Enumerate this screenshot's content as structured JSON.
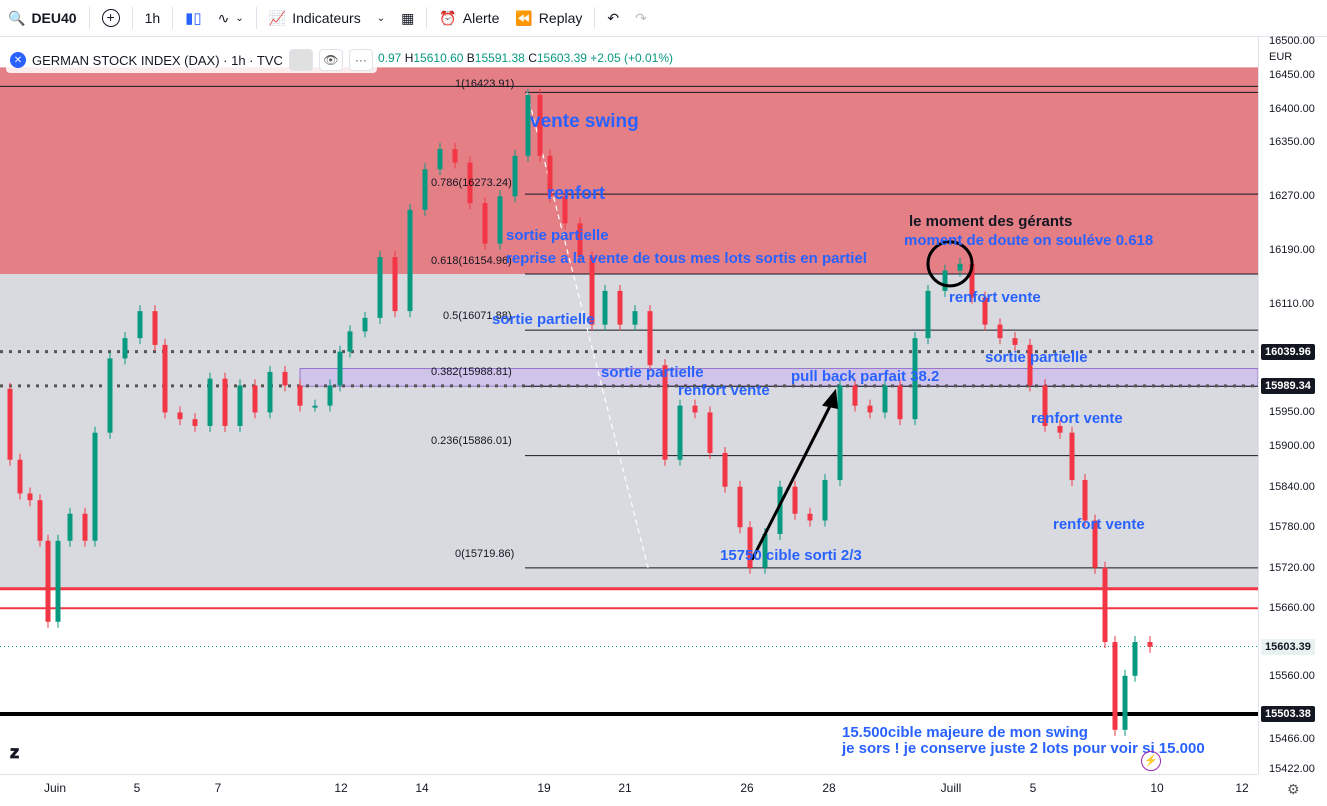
{
  "toolbar": {
    "symbol": "DEU40",
    "interval": "1h",
    "indicators_label": "Indicateurs",
    "alert_label": "Alerte",
    "replay_label": "Replay"
  },
  "legend": {
    "title": "GERMAN STOCK INDEX (DAX) · 1h · TVC",
    "ohlc_o": "0.97",
    "ohlc_h_label": "H",
    "ohlc_h": "15610.60",
    "ohlc_b_label": "B",
    "ohlc_b": "15591.38",
    "ohlc_c_label": "C",
    "ohlc_c": "15603.39",
    "change": "+2.05 (+0.01%)"
  },
  "price_axis": {
    "currency": "EUR",
    "ticks": [
      "16500.00",
      "16450.00",
      "16400.00",
      "16350.00",
      "16270.00",
      "16190.00",
      "16110.00",
      "15950.00",
      "15900.00",
      "15840.00",
      "15780.00",
      "15720.00",
      "15660.00",
      "15560.00",
      "15466.00",
      "15422.00"
    ],
    "tags": [
      {
        "value": "16039.96",
        "bg": "#131722",
        "fg": "#ffffff"
      },
      {
        "value": "15989.34",
        "bg": "#131722",
        "fg": "#ffffff"
      },
      {
        "value": "15603.39",
        "bg": "#e8f3f1",
        "fg": "#131722"
      },
      {
        "value": "15503.38",
        "bg": "#131722",
        "fg": "#ffffff"
      }
    ]
  },
  "time_axis": [
    "Juin",
    "5",
    "7",
    "12",
    "14",
    "19",
    "21",
    "26",
    "28",
    "Juill",
    "5",
    "10",
    "12"
  ],
  "fib_levels": [
    {
      "label": "1(16423.91)",
      "price": 16423.91
    },
    {
      "label": "0.786(16273.24)",
      "price": 16273.24
    },
    {
      "label": "0.618(16154.96)",
      "price": 16154.96
    },
    {
      "label": "0.5(16071.88)",
      "price": 16071.88
    },
    {
      "label": "0.382(15988.81)",
      "price": 15988.81
    },
    {
      "label": "0.236(15886.01)",
      "price": 15886.01
    },
    {
      "label": "0(15719.86)",
      "price": 15719.86
    }
  ],
  "annotations": {
    "a1": "vente swing",
    "a2": "renfort",
    "a3": "sortie partielle",
    "a4": "reprise a la vente de tous mes lots sortis en partiel",
    "a5": "sortie partielle",
    "a6": "sortie partielle",
    "a7": "renfort vente",
    "a8": "pull back parfait 38.2",
    "a9": "15750 cible sorti 2/3",
    "a10": "le moment des gérants",
    "a11": "moment de doute on souléve 0.618",
    "a12": "renfort vente",
    "a13": "sortie partielle",
    "a14": "renfort vente",
    "a15": "renfort vente",
    "a16": "15.500cible majeure de mon swing",
    "a17": "je sors ! je conserve juste 2 lots pour voir si 15.000"
  },
  "colors": {
    "up": "#089981",
    "down": "#f23645",
    "zone_red": "#e57f86",
    "zone_grey": "#d9dae0",
    "annotation": "#2962ff"
  },
  "chart_data": {
    "type": "candlestick",
    "last_price": 15603.39,
    "support_lines": [
      15689,
      15660,
      15503.38
    ],
    "horizontal_dotted": [
      16039.96,
      15989.34
    ]
  }
}
